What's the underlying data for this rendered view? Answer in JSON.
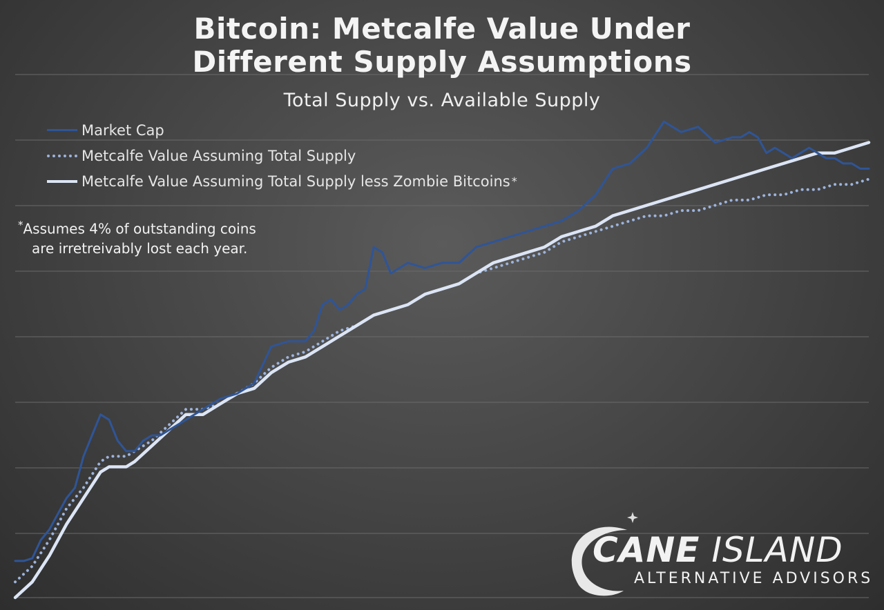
{
  "header": {
    "title_line1": "Bitcoin:  Metcalfe Value Under",
    "title_line2": "Different Supply Assumptions",
    "subtitle": "Total Supply vs. Available Supply"
  },
  "legend": {
    "items": [
      {
        "label": "Market Cap",
        "color": "#2f5597",
        "style": "solid"
      },
      {
        "label": "Metcalfe Value Assuming Total Supply",
        "color": "#9db3dc",
        "style": "dotted"
      },
      {
        "label": "Metcalfe Value Assuming Total Supply less Zombie Bitcoins",
        "color": "#dce5f5",
        "style": "solid-thick"
      }
    ],
    "asterisk": "*"
  },
  "footnote": {
    "asterisk": "*",
    "line1": "Assumes 4% of outstanding coins",
    "line2": "are irretreivably lost each year."
  },
  "logo": {
    "word1": "CANE",
    "word2": "ISLAND",
    "tagline": "ALTERNATIVE ADVISORS"
  },
  "chart_data": {
    "type": "line",
    "title": "Bitcoin:  Metcalfe Value Under Different Supply Assumptions",
    "subtitle": "Total Supply vs. Available Supply",
    "xlabel": "",
    "ylabel": "",
    "grid": true,
    "legend_position": "top-left",
    "x_tick_labels": [],
    "y_tick_labels": [],
    "xlim": [
      0,
      100
    ],
    "ylim": [
      0,
      100
    ],
    "series": [
      {
        "name": "Market Cap",
        "color": "#2f5597",
        "x": [
          0,
          1,
          2,
          3,
          4,
          5,
          6,
          7,
          8,
          9,
          10,
          11,
          12,
          13,
          14,
          15,
          16,
          17,
          18,
          19,
          20,
          22,
          24,
          26,
          28,
          30,
          32,
          34,
          35,
          36,
          37,
          38,
          39,
          40,
          41,
          42,
          43,
          44,
          45,
          46,
          48,
          50,
          52,
          54,
          56,
          58,
          60,
          62,
          64,
          66,
          68,
          70,
          72,
          74,
          76,
          78,
          80,
          82,
          84,
          85,
          86,
          87,
          88,
          89,
          90,
          91,
          92,
          93,
          94,
          95,
          96,
          97,
          98,
          99,
          100
        ],
        "values": [
          7,
          7,
          7.5,
          11,
          13,
          16,
          19,
          21,
          27,
          31,
          35,
          34,
          30,
          28,
          28,
          30,
          31,
          31,
          32,
          33,
          34,
          36,
          38,
          39,
          41,
          48,
          49,
          49,
          51,
          56,
          57,
          55,
          56,
          58,
          59,
          67,
          66,
          62,
          63,
          64,
          63,
          64,
          64,
          67,
          68,
          69,
          70,
          71,
          72,
          74,
          77,
          82,
          83,
          86,
          91,
          89,
          90,
          87,
          88,
          88,
          89,
          88,
          85,
          86,
          85,
          84,
          85,
          86,
          85,
          84,
          84,
          83,
          83,
          82,
          82
        ]
      },
      {
        "name": "Metcalfe Value Assuming Total Supply",
        "color": "#9db3dc",
        "x": [
          0,
          2,
          4,
          6,
          8,
          10,
          11,
          12,
          13,
          14,
          16,
          18,
          20,
          22,
          24,
          26,
          28,
          30,
          32,
          34,
          36,
          38,
          40,
          42,
          44,
          46,
          48,
          50,
          52,
          54,
          56,
          58,
          60,
          62,
          64,
          66,
          68,
          70,
          72,
          74,
          76,
          78,
          80,
          82,
          84,
          86,
          88,
          90,
          92,
          94,
          96,
          98,
          100
        ],
        "values": [
          3,
          6,
          11,
          17,
          21,
          26,
          27,
          27,
          27,
          28,
          30,
          33,
          36,
          36,
          37,
          39,
          41,
          44,
          46,
          47,
          49,
          51,
          52,
          54,
          55,
          56,
          58,
          59,
          60,
          62,
          63,
          64,
          65,
          66,
          68,
          69,
          70,
          71,
          72,
          73,
          73,
          74,
          74,
          75,
          76,
          76,
          77,
          77,
          78,
          78,
          79,
          79,
          80
        ]
      },
      {
        "name": "Metcalfe Value Assuming Total Supply less Zombie Bitcoins",
        "color": "#dce5f5",
        "x": [
          0,
          2,
          4,
          6,
          8,
          10,
          11,
          12,
          13,
          14,
          16,
          18,
          20,
          22,
          24,
          26,
          28,
          30,
          32,
          34,
          36,
          38,
          40,
          42,
          44,
          46,
          48,
          50,
          52,
          54,
          56,
          58,
          60,
          62,
          64,
          66,
          68,
          70,
          72,
          74,
          76,
          78,
          80,
          82,
          84,
          86,
          88,
          90,
          92,
          94,
          96,
          98,
          100
        ],
        "values": [
          0,
          3,
          8,
          14,
          19,
          24,
          25,
          25,
          25,
          26,
          29,
          32,
          35,
          35,
          37,
          39,
          40,
          43,
          45,
          46,
          48,
          50,
          52,
          54,
          55,
          56,
          58,
          59,
          60,
          62,
          64,
          65,
          66,
          67,
          69,
          70,
          71,
          73,
          74,
          75,
          76,
          77,
          78,
          79,
          80,
          81,
          82,
          83,
          84,
          85,
          85,
          86,
          87
        ]
      }
    ]
  }
}
